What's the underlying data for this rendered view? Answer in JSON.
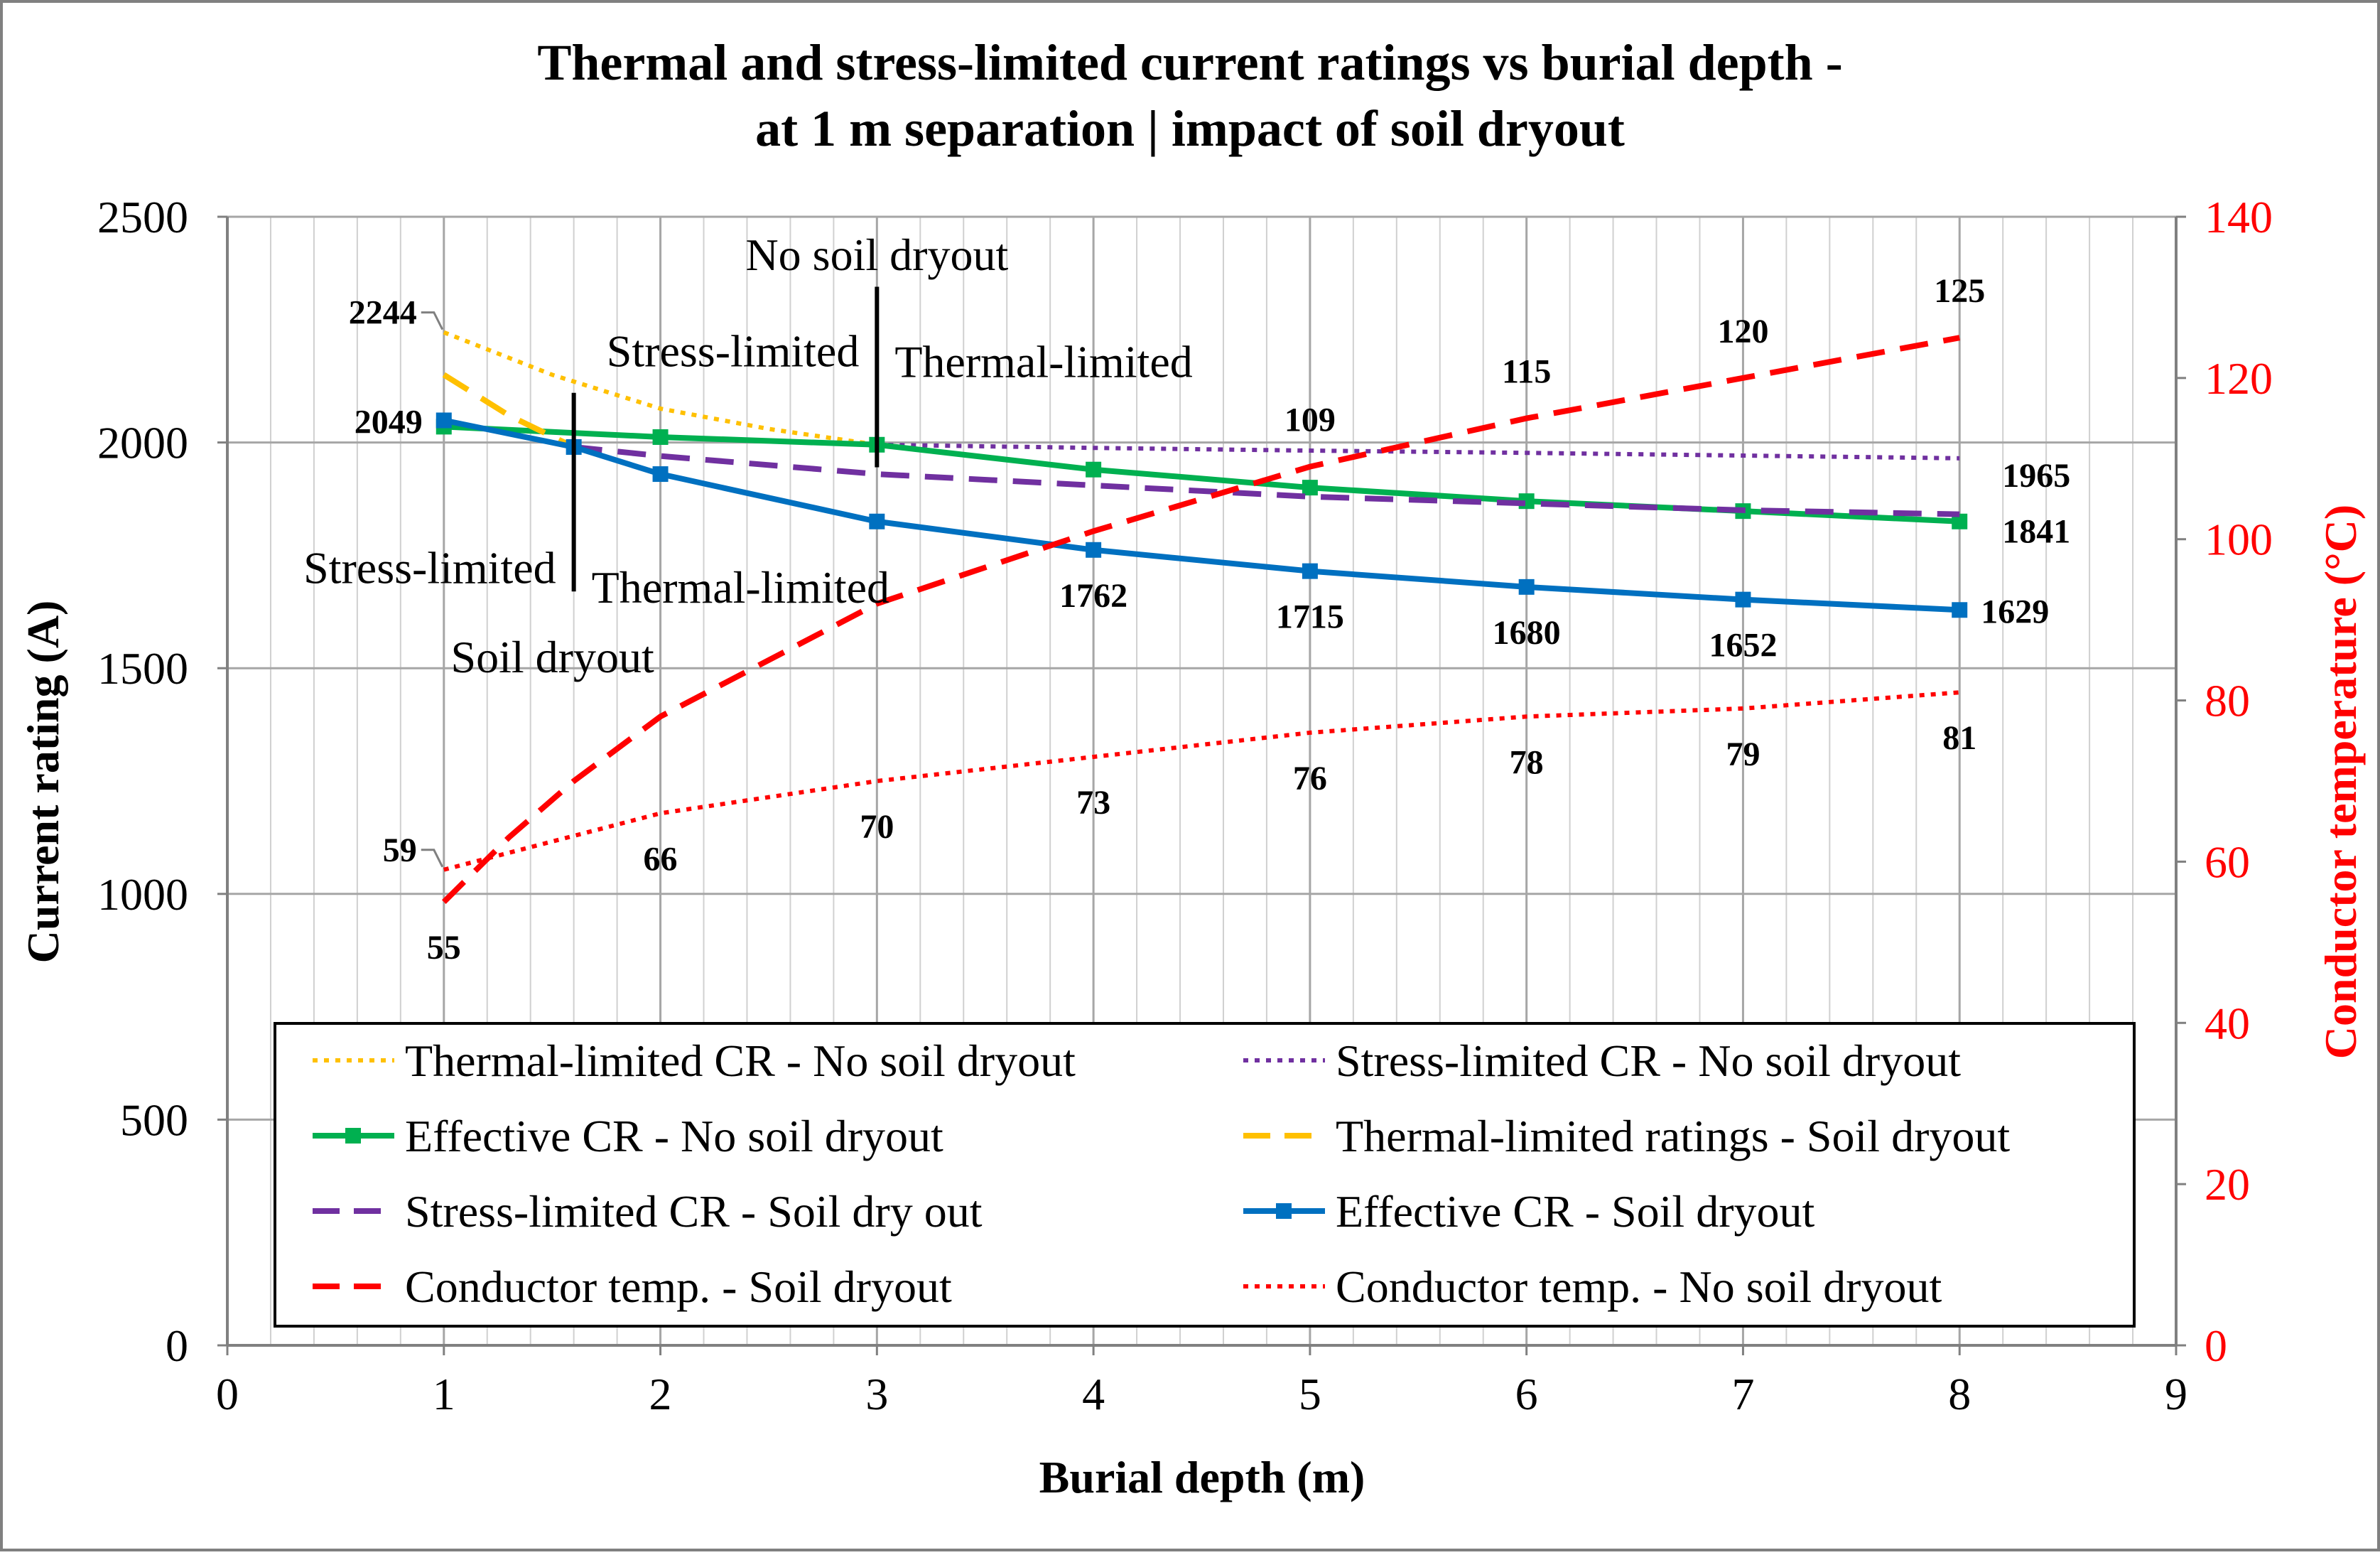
{
  "chart_data": {
    "type": "line",
    "title": [
      "Thermal and stress-limited current ratings vs burial depth -",
      "at 1 m separation | impact of soil dryout"
    ],
    "xlabel": "Burial depth (m)",
    "ylabel": "Current rating (A)",
    "y2label": "Conductor temperature (°C)",
    "xlim": [
      0,
      9
    ],
    "ylim": [
      0,
      2500
    ],
    "y2lim": [
      0,
      140
    ],
    "xticks": [
      "0",
      "1",
      "2",
      "3",
      "4",
      "5",
      "6",
      "7",
      "8",
      "9"
    ],
    "yticks": [
      "0",
      "500",
      "1000",
      "1500",
      "2000",
      "2500"
    ],
    "y2ticks": [
      "0",
      "20",
      "40",
      "60",
      "80",
      "100",
      "120",
      "140"
    ],
    "grid": true,
    "legend_position": "bottom",
    "series": [
      {
        "name": "Thermal-limited CR - No soil dryout",
        "axis": "left",
        "color": "#ffc000",
        "dash": "dot",
        "x": [
          1,
          1.5,
          2,
          2.5,
          3
        ],
        "values": [
          2244,
          2150,
          2075,
          2030,
          1995
        ]
      },
      {
        "name": "Stress-limited CR - No soil dryout",
        "axis": "left",
        "color": "#7030a0",
        "dash": "dot",
        "x": [
          3,
          4,
          5,
          6,
          7,
          8
        ],
        "values": [
          1995,
          1988,
          1982,
          1977,
          1971,
          1965
        ]
      },
      {
        "name": "Effective CR - No soil dryout",
        "axis": "left",
        "color": "#00b050",
        "dash": "solid",
        "marker": "square",
        "x": [
          1,
          2,
          3,
          4,
          5,
          6,
          7,
          8
        ],
        "values": [
          2035,
          2012,
          1995,
          1940,
          1900,
          1870,
          1848,
          1825
        ]
      },
      {
        "name": "Thermal-limited ratings - Soil dryout",
        "axis": "left",
        "color": "#ffc000",
        "dash": "dash",
        "x": [
          1,
          1.3,
          1.6
        ],
        "values": [
          2150,
          2060,
          1990
        ]
      },
      {
        "name": "Stress-limited CR - Soil dry out",
        "axis": "left",
        "color": "#7030a0",
        "dash": "dash",
        "x": [
          1.6,
          2,
          3,
          4,
          5,
          6,
          7,
          8
        ],
        "values": [
          1990,
          1970,
          1930,
          1905,
          1880,
          1865,
          1850,
          1841
        ]
      },
      {
        "name": "Effective CR - Soil dryout",
        "axis": "left",
        "color": "#0070c0",
        "dash": "solid",
        "marker": "square",
        "x": [
          1,
          1.6,
          2,
          3,
          4,
          5,
          6,
          7,
          8
        ],
        "values": [
          2049,
          1990,
          1930,
          1825,
          1762,
          1715,
          1680,
          1652,
          1629
        ]
      },
      {
        "name": "Conductor temp. - Soil dryout",
        "axis": "right",
        "color": "#ff0000",
        "dash": "dash",
        "x": [
          1,
          1.3,
          1.6,
          2,
          3,
          4,
          5,
          6,
          7,
          8
        ],
        "values": [
          55,
          63,
          70,
          78,
          92,
          101,
          109,
          115,
          120,
          125
        ]
      },
      {
        "name": "Conductor temp. - No soil dryout",
        "axis": "right",
        "color": "#ff0000",
        "dash": "dot",
        "x": [
          1,
          2,
          3,
          4,
          5,
          6,
          7,
          8
        ],
        "values": [
          59,
          66,
          70,
          73,
          76,
          78,
          79,
          81
        ]
      }
    ],
    "data_labels": [
      {
        "text": "2244",
        "x": 1,
        "y": 2244,
        "axis": "left",
        "pos": "left-leader"
      },
      {
        "text": "2049",
        "x": 1,
        "y": 2049,
        "axis": "left",
        "pos": "left"
      },
      {
        "text": "1762",
        "x": 4,
        "y": 1762,
        "axis": "left",
        "pos": "below"
      },
      {
        "text": "1715",
        "x": 5,
        "y": 1715,
        "axis": "left",
        "pos": "below"
      },
      {
        "text": "1680",
        "x": 6,
        "y": 1680,
        "axis": "left",
        "pos": "below"
      },
      {
        "text": "1652",
        "x": 7,
        "y": 1652,
        "axis": "left",
        "pos": "below"
      },
      {
        "text": "1629",
        "x": 8,
        "y": 1629,
        "axis": "left",
        "pos": "right"
      },
      {
        "text": "1965",
        "x": 8,
        "y": 1965,
        "axis": "left",
        "pos": "right-below"
      },
      {
        "text": "1841",
        "x": 8,
        "y": 1841,
        "axis": "left",
        "pos": "right-below"
      },
      {
        "text": "109",
        "x": 5,
        "y": 109,
        "axis": "right",
        "pos": "above"
      },
      {
        "text": "115",
        "x": 6,
        "y": 115,
        "axis": "right",
        "pos": "above"
      },
      {
        "text": "120",
        "x": 7,
        "y": 120,
        "axis": "right",
        "pos": "above"
      },
      {
        "text": "125",
        "x": 8,
        "y": 125,
        "axis": "right",
        "pos": "above"
      },
      {
        "text": "59",
        "x": 1,
        "y": 59,
        "axis": "right",
        "pos": "left-leader"
      },
      {
        "text": "55",
        "x": 1,
        "y": 55,
        "axis": "right",
        "pos": "below"
      },
      {
        "text": "66",
        "x": 2,
        "y": 66,
        "axis": "right",
        "pos": "below"
      },
      {
        "text": "70",
        "x": 3,
        "y": 70,
        "axis": "right",
        "pos": "below"
      },
      {
        "text": "73",
        "x": 4,
        "y": 73,
        "axis": "right",
        "pos": "below"
      },
      {
        "text": "76",
        "x": 5,
        "y": 76,
        "axis": "right",
        "pos": "below"
      },
      {
        "text": "78",
        "x": 6,
        "y": 78,
        "axis": "right",
        "pos": "below"
      },
      {
        "text": "79",
        "x": 7,
        "y": 79,
        "axis": "right",
        "pos": "below"
      },
      {
        "text": "81",
        "x": 8,
        "y": 81,
        "axis": "right",
        "pos": "below"
      }
    ],
    "annotations": [
      {
        "text": "No soil dryout",
        "x": 3,
        "y": 2500,
        "type": "header"
      },
      {
        "text": "Stress-limited",
        "x": 3,
        "y": 2200,
        "type": "left-of-divider"
      },
      {
        "text": "Thermal-limited",
        "x": 3,
        "y": 2200,
        "type": "right-of-divider"
      },
      {
        "text": "Stress-limited",
        "x": 1.6,
        "y": 1720,
        "type": "left-of-divider"
      },
      {
        "text": "Thermal-limited",
        "x": 1.6,
        "y": 1700,
        "type": "right-of-divider"
      },
      {
        "text": "Soil dryout",
        "x": 1.6,
        "y": 1530,
        "type": "footer"
      }
    ],
    "dividers": [
      {
        "x": 3,
        "y_from": 2345,
        "y_to": 1945
      },
      {
        "x": 1.6,
        "y_from": 2110,
        "y_to": 1670
      }
    ]
  }
}
